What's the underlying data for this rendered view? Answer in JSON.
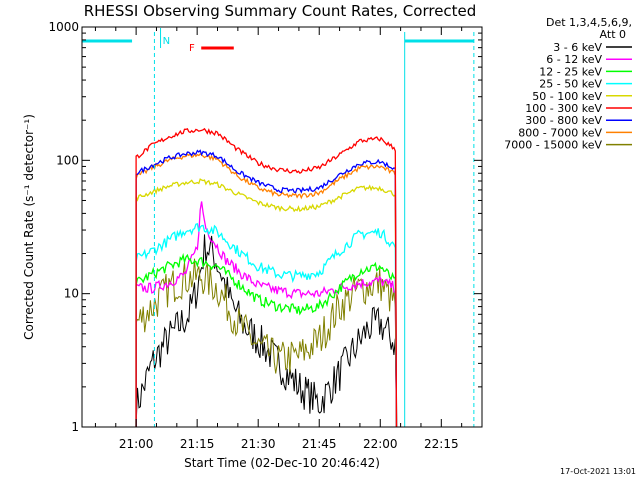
{
  "chart_data": {
    "type": "line",
    "title": "RHESSI Observing Summary Count Rates, Corrected",
    "xlabel": "Start Time (02-Dec-10 20:46:42)",
    "ylabel": "Corrected Count Rate (s⁻¹ detector⁻¹)",
    "y_scale": "log",
    "ylim": [
      1,
      1000
    ],
    "xlim_minutes": [
      "20:46:42",
      "22:25:00"
    ],
    "x_ticks": [
      "21:00",
      "21:15",
      "21:30",
      "21:45",
      "22:00",
      "22:15"
    ],
    "y_ticks": [
      "1",
      "10",
      "100",
      "1000"
    ],
    "legend_header": [
      "Det 1,3,4,5,6,9,",
      "Att 0"
    ],
    "footer": "17-Oct-2021 13:01",
    "annotations": {
      "night_label": "N",
      "flare_label": "F",
      "night_color": "#00e0e8",
      "flare_color": "#ff0000"
    },
    "series": [
      {
        "name": "3 - 6 keV",
        "color": "#000000",
        "points": [
          [
            "21:00",
            1.4
          ],
          [
            "21:04",
            3
          ],
          [
            "21:07",
            4.2
          ],
          [
            "21:10",
            5.5
          ],
          [
            "21:13",
            7
          ],
          [
            "21:15",
            11
          ],
          [
            "21:17",
            23
          ],
          [
            "21:19",
            20
          ],
          [
            "21:21",
            14
          ],
          [
            "21:23",
            9
          ],
          [
            "21:26",
            6
          ],
          [
            "21:30",
            4.5
          ],
          [
            "21:35",
            3
          ],
          [
            "21:40",
            2
          ],
          [
            "21:45",
            1.5
          ],
          [
            "21:50",
            2.5
          ],
          [
            "21:54",
            4
          ],
          [
            "21:57",
            5.5
          ],
          [
            "22:00",
            6
          ],
          [
            "22:02",
            5
          ],
          [
            "22:04",
            4
          ]
        ]
      },
      {
        "name": "6 - 12 keV",
        "color": "#ff00ff",
        "points": [
          [
            "21:00",
            11
          ],
          [
            "21:04",
            11
          ],
          [
            "21:08",
            12
          ],
          [
            "21:12",
            14
          ],
          [
            "21:15",
            22
          ],
          [
            "21:16",
            50
          ],
          [
            "21:17",
            32
          ],
          [
            "21:19",
            25
          ],
          [
            "21:22",
            18
          ],
          [
            "21:26",
            14
          ],
          [
            "21:30",
            11.5
          ],
          [
            "21:35",
            10.5
          ],
          [
            "21:40",
            10
          ],
          [
            "21:45",
            10
          ],
          [
            "21:50",
            11
          ],
          [
            "21:55",
            12
          ],
          [
            "22:00",
            12.5
          ],
          [
            "22:04",
            11
          ]
        ]
      },
      {
        "name": "12 - 25 keV",
        "color": "#00ff00",
        "points": [
          [
            "21:00",
            12
          ],
          [
            "21:04",
            14
          ],
          [
            "21:08",
            16
          ],
          [
            "21:12",
            18
          ],
          [
            "21:16",
            17.5
          ],
          [
            "21:20",
            16
          ],
          [
            "21:25",
            12
          ],
          [
            "21:30",
            9
          ],
          [
            "21:35",
            8
          ],
          [
            "21:40",
            7.5
          ],
          [
            "21:45",
            8
          ],
          [
            "21:50",
            11
          ],
          [
            "21:55",
            15
          ],
          [
            "22:00",
            16
          ],
          [
            "22:04",
            12
          ]
        ]
      },
      {
        "name": "25 - 50 keV",
        "color": "#00ffff",
        "points": [
          [
            "21:00",
            18
          ],
          [
            "21:04",
            21
          ],
          [
            "21:08",
            25
          ],
          [
            "21:12",
            30
          ],
          [
            "21:16",
            32
          ],
          [
            "21:20",
            29
          ],
          [
            "21:25",
            21
          ],
          [
            "21:30",
            16
          ],
          [
            "21:35",
            14
          ],
          [
            "21:40",
            13.5
          ],
          [
            "21:45",
            14.5
          ],
          [
            "21:50",
            21
          ],
          [
            "21:55",
            28
          ],
          [
            "22:00",
            29
          ],
          [
            "22:04",
            22
          ]
        ]
      },
      {
        "name": "50 - 100 keV",
        "color": "#d8d800",
        "points": [
          [
            "21:00",
            52
          ],
          [
            "21:04",
            58
          ],
          [
            "21:08",
            64
          ],
          [
            "21:12",
            68
          ],
          [
            "21:16",
            70
          ],
          [
            "21:20",
            66
          ],
          [
            "21:25",
            56
          ],
          [
            "21:30",
            48
          ],
          [
            "21:35",
            44
          ],
          [
            "21:40",
            43
          ],
          [
            "21:45",
            45
          ],
          [
            "21:50",
            53
          ],
          [
            "21:55",
            62
          ],
          [
            "22:00",
            62
          ],
          [
            "22:04",
            55
          ]
        ]
      },
      {
        "name": "100 - 300 keV",
        "color": "#ff0000",
        "points": [
          [
            "21:00",
            105
          ],
          [
            "21:04",
            130
          ],
          [
            "21:08",
            150
          ],
          [
            "21:12",
            165
          ],
          [
            "21:16",
            170
          ],
          [
            "21:20",
            160
          ],
          [
            "21:25",
            120
          ],
          [
            "21:30",
            95
          ],
          [
            "21:35",
            85
          ],
          [
            "21:40",
            82
          ],
          [
            "21:45",
            88
          ],
          [
            "21:50",
            110
          ],
          [
            "21:55",
            140
          ],
          [
            "22:00",
            145
          ],
          [
            "22:04",
            120
          ]
        ]
      },
      {
        "name": "300 - 800 keV",
        "color": "#0000ff",
        "points": [
          [
            "21:00",
            80
          ],
          [
            "21:04",
            92
          ],
          [
            "21:08",
            104
          ],
          [
            "21:12",
            112
          ],
          [
            "21:16",
            115
          ],
          [
            "21:20",
            108
          ],
          [
            "21:25",
            82
          ],
          [
            "21:30",
            68
          ],
          [
            "21:35",
            60
          ],
          [
            "21:40",
            59
          ],
          [
            "21:45",
            62
          ],
          [
            "21:50",
            78
          ],
          [
            "21:55",
            95
          ],
          [
            "22:00",
            98
          ],
          [
            "22:04",
            85
          ]
        ]
      },
      {
        "name": "800 - 7000 keV",
        "color": "#ff8000",
        "points": [
          [
            "21:00",
            75
          ],
          [
            "21:04",
            88
          ],
          [
            "21:08",
            100
          ],
          [
            "21:12",
            108
          ],
          [
            "21:16",
            110
          ],
          [
            "21:20",
            102
          ],
          [
            "21:25",
            76
          ],
          [
            "21:30",
            62
          ],
          [
            "21:35",
            55
          ],
          [
            "21:40",
            54
          ],
          [
            "21:45",
            57
          ],
          [
            "21:50",
            72
          ],
          [
            "21:55",
            88
          ],
          [
            "22:00",
            90
          ],
          [
            "22:04",
            78
          ]
        ]
      },
      {
        "name": "7000 - 15000 keV",
        "color": "#808000",
        "points": [
          [
            "21:00",
            6
          ],
          [
            "21:04",
            8
          ],
          [
            "21:08",
            11
          ],
          [
            "21:12",
            13
          ],
          [
            "21:16",
            13.5
          ],
          [
            "21:20",
            11
          ],
          [
            "21:25",
            6
          ],
          [
            "21:30",
            4
          ],
          [
            "21:35",
            3.2
          ],
          [
            "21:40",
            3.4
          ],
          [
            "21:45",
            4.5
          ],
          [
            "21:50",
            8
          ],
          [
            "21:55",
            11
          ],
          [
            "22:00",
            12
          ],
          [
            "22:04",
            8
          ]
        ]
      }
    ]
  }
}
